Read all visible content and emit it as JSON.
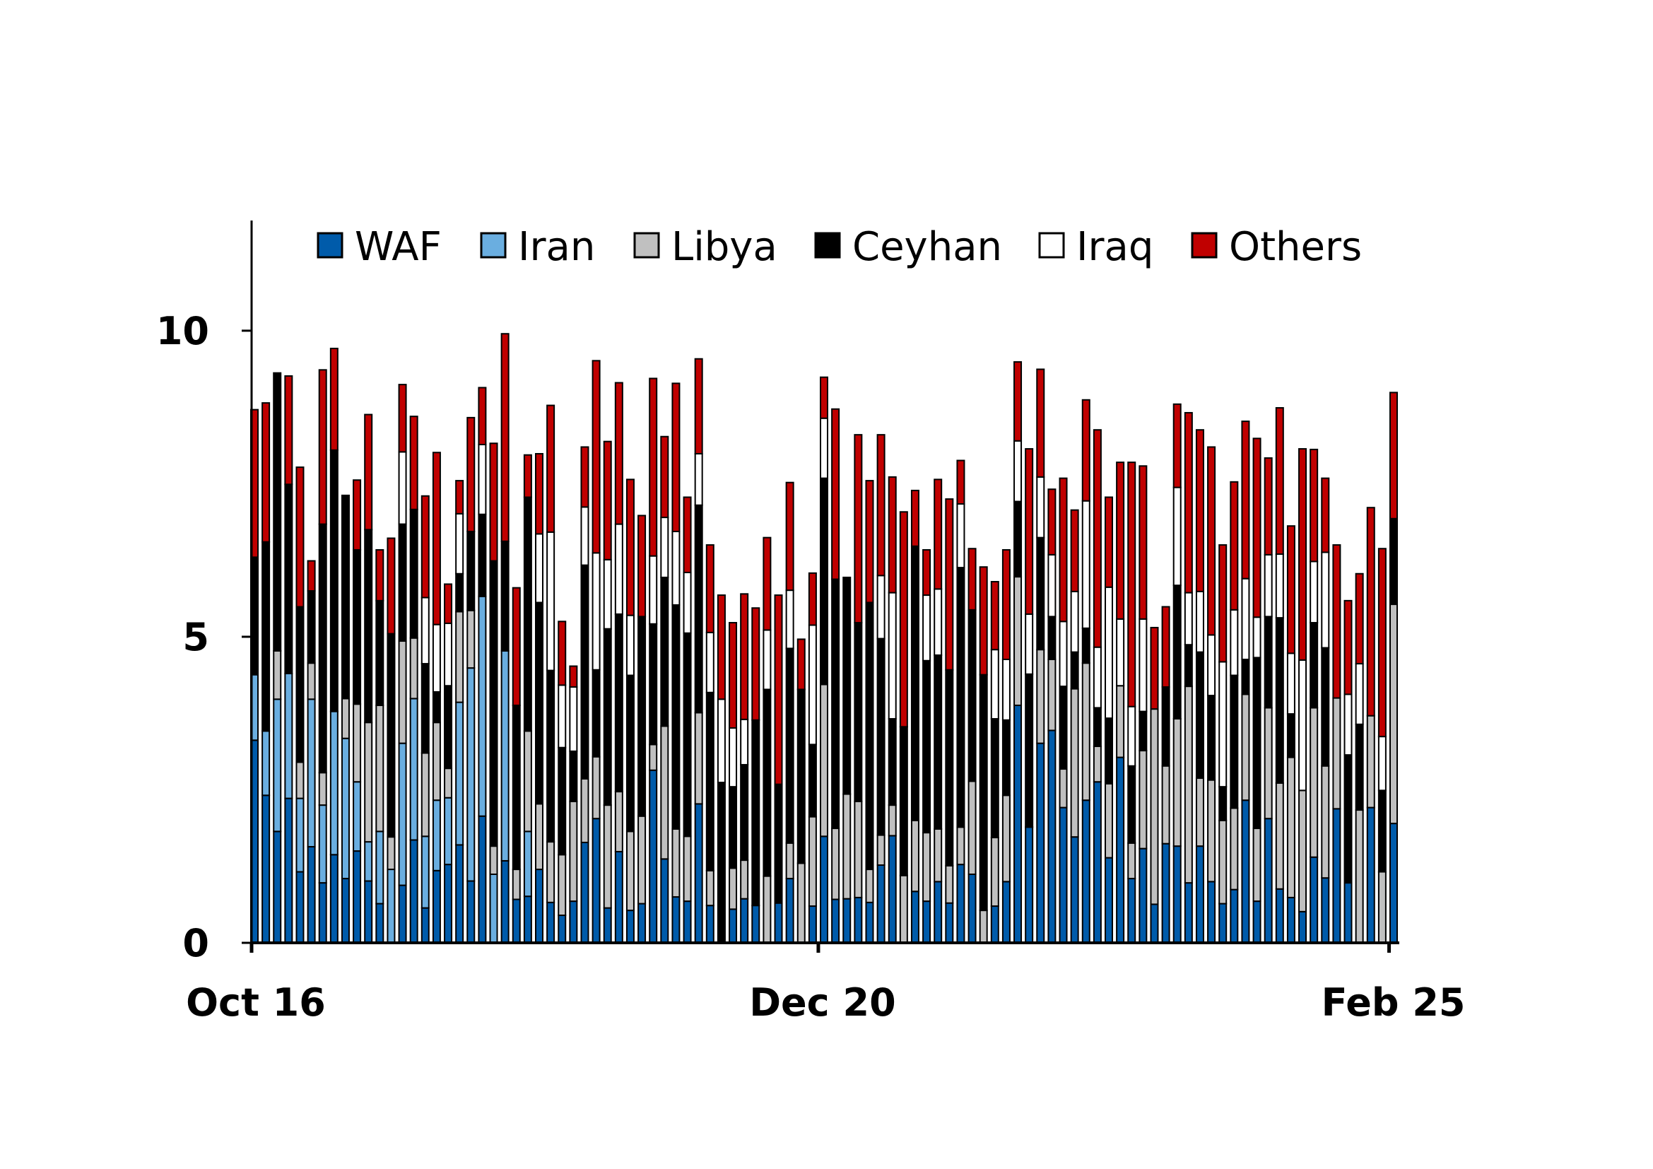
{
  "chart_data": {
    "type": "bar",
    "stacked": true,
    "title": "",
    "xlabel": "",
    "ylabel": "",
    "ylim": [
      0,
      11.8
    ],
    "yticks": [
      0,
      5,
      10
    ],
    "ytick_labels": [
      "0",
      "5",
      "10"
    ],
    "xticks": [
      {
        "label": "Oct 16",
        "bar_index": 0
      },
      {
        "label": "Dec 20",
        "bar_index": 49.5
      },
      {
        "label": "Feb 25",
        "bar_index": 99.6
      }
    ],
    "grid": false,
    "legend_position": "top",
    "series": [
      {
        "name": "WAF",
        "color": "#005BAA"
      },
      {
        "name": "Iran",
        "color": "#6AAEE0"
      },
      {
        "name": "Libya",
        "color": "#C0C0C0"
      },
      {
        "name": "Ceyhan",
        "color": "#000000"
      },
      {
        "name": "Iraq",
        "color": "#FFFFFF"
      },
      {
        "name": "Others",
        "color": "#C00000"
      }
    ],
    "values_order": [
      "WAF",
      "Iran",
      "Libya",
      "Ceyhan",
      "Iraq",
      "Others"
    ],
    "bars": [
      [
        3.31,
        1.07,
        0,
        1.92,
        0,
        2.41
      ],
      [
        2.41,
        1.05,
        0,
        3.09,
        0,
        2.27
      ],
      [
        1.82,
        2.16,
        0.79,
        4.54,
        0,
        0
      ],
      [
        2.36,
        2.04,
        0,
        3.09,
        0,
        1.77
      ],
      [
        1.16,
        1.2,
        0.59,
        2.54,
        0,
        2.28
      ],
      [
        1.57,
        2.41,
        0.59,
        1.18,
        0,
        0.49
      ],
      [
        0.98,
        1.27,
        0.53,
        4.06,
        0,
        2.52
      ],
      [
        1.44,
        2.34,
        0,
        4.27,
        0,
        1.66
      ],
      [
        1.05,
        2.29,
        0.65,
        3.32,
        0,
        0
      ],
      [
        1.5,
        1.13,
        1.27,
        2.52,
        0,
        1.14
      ],
      [
        1.01,
        0.64,
        1.95,
        3.15,
        0,
        1.88
      ],
      [
        0.64,
        1.18,
        2.06,
        1.71,
        0,
        0.83
      ],
      [
        0,
        1.2,
        0.53,
        3.32,
        0,
        1.56
      ],
      [
        0.94,
        2.32,
        1.67,
        1.91,
        1.18,
        1.1
      ],
      [
        1.68,
        2.31,
        0.99,
        2.1,
        0,
        1.52
      ],
      [
        0.57,
        1.17,
        1.36,
        1.46,
        1.08,
        1.66
      ],
      [
        1.18,
        1.15,
        1.27,
        0.5,
        1.1,
        2.81
      ],
      [
        1.28,
        1.09,
        0.48,
        1.35,
        1.02,
        0.64
      ],
      [
        1.6,
        2.33,
        1.48,
        0.62,
        0.98,
        0.54
      ],
      [
        1.01,
        3.48,
        0.94,
        1.29,
        0,
        1.86
      ],
      [
        2.07,
        3.59,
        0,
        1.34,
        1.14,
        0.93
      ],
      [
        0,
        1.12,
        0.46,
        4.66,
        0,
        1.92
      ],
      [
        1.34,
        3.43,
        0,
        1.79,
        0,
        3.39
      ],
      [
        0.71,
        0,
        0.49,
        2.68,
        0,
        1.92
      ],
      [
        0.76,
        1.06,
        1.64,
        3.82,
        0,
        0.69
      ],
      [
        1.2,
        0,
        1.07,
        3.29,
        1.12,
        1.31
      ],
      [
        0.66,
        0,
        0.99,
        2.8,
        2.26,
        2.07
      ],
      [
        0.45,
        0,
        0.99,
        1.75,
        1.02,
        1.04
      ],
      [
        0.68,
        0,
        1.63,
        0.82,
        1.05,
        0.34
      ],
      [
        1.64,
        0,
        1.04,
        3.49,
        0.95,
        0.98
      ],
      [
        2.03,
        0,
        1.01,
        1.42,
        1.91,
        3.14
      ],
      [
        0.57,
        0,
        1.68,
        2.88,
        1.13,
        1.93
      ],
      [
        1.49,
        0,
        0.98,
        2.9,
        1.47,
        2.31
      ],
      [
        0.53,
        0,
        1.29,
        2.55,
        0.98,
        2.22
      ],
      [
        0.64,
        0,
        1.43,
        3.26,
        0,
        1.65
      ],
      [
        2.82,
        0,
        0.42,
        1.97,
        1.11,
        2.9
      ],
      [
        1.37,
        0,
        2.17,
        2.43,
        0.98,
        1.32
      ],
      [
        0.75,
        0,
        1.11,
        3.66,
        1.2,
        2.42
      ],
      [
        0.68,
        0,
        1.06,
        3.32,
        0.99,
        1.23
      ],
      [
        2.27,
        0,
        1.49,
        3.39,
        0.84,
        1.55
      ],
      [
        0.61,
        0,
        0.57,
        2.91,
        0.98,
        1.43
      ],
      [
        0,
        0,
        0,
        2.62,
        1.36,
        1.7
      ],
      [
        0.55,
        0,
        0.67,
        1.33,
        0.96,
        1.72
      ],
      [
        0.72,
        0,
        0.63,
        1.56,
        0.74,
        2.05
      ],
      [
        0.61,
        0,
        0,
        3.03,
        0,
        1.83
      ],
      [
        0,
        0,
        1.09,
        3.05,
        0.97,
        1.51
      ],
      [
        0.65,
        0,
        0,
        1.94,
        0,
        3.09
      ],
      [
        1.05,
        0,
        0.58,
        3.18,
        0.95,
        1.76
      ],
      [
        0,
        0,
        1.3,
        2.84,
        0,
        0.82
      ],
      [
        0.6,
        0,
        1.46,
        1.18,
        1.95,
        0.85
      ],
      [
        1.74,
        0,
        2.48,
        3.37,
        0.98,
        0.67
      ],
      [
        0.71,
        0,
        1.16,
        4.07,
        0,
        2.78
      ],
      [
        0.72,
        0,
        1.71,
        3.54,
        0,
        0
      ],
      [
        0.74,
        0,
        1.57,
        2.92,
        0,
        3.07
      ],
      [
        0.66,
        0,
        0.54,
        4.36,
        0,
        1.99
      ],
      [
        1.27,
        0,
        0.49,
        3.21,
        1.03,
        2.3
      ],
      [
        1.75,
        0,
        0.5,
        1.41,
        2.06,
        1.89
      ],
      [
        0,
        0,
        1.1,
        2.43,
        0,
        3.51
      ],
      [
        0.84,
        0,
        1.16,
        4.48,
        0,
        0.91
      ],
      [
        0.68,
        0,
        1.12,
        2.81,
        1.07,
        0.74
      ],
      [
        1.0,
        0,
        0.86,
        2.84,
        1.08,
        1.79
      ],
      [
        0.65,
        0,
        0.61,
        3.2,
        0,
        2.79
      ],
      [
        1.28,
        0,
        0.61,
        4.24,
        1.04,
        0.71
      ],
      [
        1.12,
        0,
        1.52,
        2.8,
        0,
        1.0
      ],
      [
        0,
        0,
        0.53,
        3.85,
        0,
        1.76
      ],
      [
        0.6,
        0,
        1.12,
        1.94,
        1.13,
        1.11
      ],
      [
        1.0,
        0,
        1.41,
        1.23,
        0.99,
        1.79
      ],
      [
        3.88,
        0,
        2.1,
        1.23,
        0.99,
        1.29
      ],
      [
        1.89,
        0,
        0,
        2.5,
        0.98,
        2.7
      ],
      [
        3.26,
        0,
        1.53,
        1.83,
        0.99,
        1.76
      ],
      [
        3.47,
        0,
        1.16,
        0.7,
        1.01,
        1.07
      ],
      [
        2.21,
        0,
        0.63,
        1.35,
        1.06,
        2.34
      ],
      [
        1.73,
        0,
        2.42,
        0.6,
        0.99,
        1.33
      ],
      [
        2.33,
        0,
        2.24,
        0.57,
        2.08,
        1.65
      ],
      [
        2.63,
        0,
        0.58,
        0.63,
        0.99,
        3.55
      ],
      [
        1.39,
        0,
        1.21,
        1.07,
        2.14,
        1.47
      ],
      [
        3.03,
        0,
        1.17,
        0,
        1.09,
        2.56
      ],
      [
        1.05,
        0,
        0.58,
        1.26,
        0.97,
        3.99
      ],
      [
        1.54,
        0,
        1.6,
        0.64,
        1.51,
        2.5
      ],
      [
        0.63,
        0,
        3.19,
        0,
        0,
        1.33
      ],
      [
        1.62,
        0,
        1.27,
        1.29,
        0,
        1.31
      ],
      [
        1.58,
        0,
        2.08,
        2.18,
        1.6,
        1.36
      ],
      [
        0.98,
        0,
        3.21,
        0.68,
        0.85,
        2.94
      ],
      [
        1.58,
        0,
        1.11,
        2.06,
        0.99,
        2.64
      ],
      [
        1.0,
        0,
        1.66,
        1.38,
        0.99,
        3.07
      ],
      [
        0.64,
        0,
        1.36,
        0.55,
        2.04,
        1.91
      ],
      [
        0.87,
        0,
        1.33,
        2.17,
        1.07,
        2.09
      ],
      [
        2.33,
        0,
        1.73,
        0.57,
        1.32,
        2.57
      ],
      [
        0.68,
        0,
        1.19,
        2.79,
        0.66,
        2.92
      ],
      [
        2.03,
        0,
        1.81,
        1.49,
        1.01,
        1.58
      ],
      [
        0.88,
        0,
        1.73,
        2.7,
        1.04,
        2.39
      ],
      [
        0.74,
        0,
        2.29,
        0.71,
        0.99,
        2.08
      ],
      [
        0.51,
        0,
        1.98,
        0,
        2.13,
        3.45
      ],
      [
        1.4,
        0,
        2.44,
        1.39,
        1.0,
        1.83
      ],
      [
        1.06,
        0,
        1.83,
        1.93,
        1.56,
        1.21
      ],
      [
        2.19,
        0,
        1.81,
        0,
        0,
        2.5
      ],
      [
        0.98,
        0,
        0,
        2.09,
        0.99,
        1.53
      ],
      [
        0,
        0,
        2.17,
        1.4,
        0.99,
        1.47
      ],
      [
        2.21,
        0,
        1.5,
        0,
        0,
        3.4
      ],
      [
        0,
        0,
        1.16,
        1.33,
        0.88,
        3.07
      ],
      [
        1.95,
        0,
        3.58,
        1.4,
        0,
        2.06
      ]
    ]
  }
}
